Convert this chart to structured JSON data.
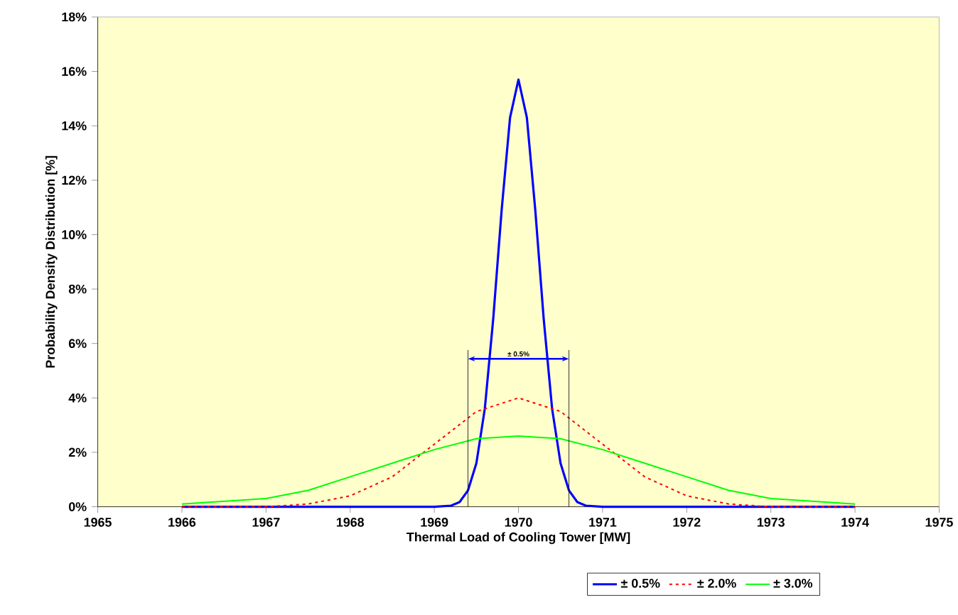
{
  "chart_data": {
    "type": "line",
    "xlabel": "Thermal Load of Cooling Tower [MW]",
    "ylabel": "Probability Density Distribution [%]",
    "xlim": [
      1965,
      1975
    ],
    "xticks": [
      1965,
      1966,
      1967,
      1968,
      1969,
      1970,
      1971,
      1972,
      1973,
      1974,
      1975
    ],
    "ylim": [
      0,
      18
    ],
    "yticks": [
      {
        "value": 0,
        "label": "0%"
      },
      {
        "value": 2,
        "label": "2%"
      },
      {
        "value": 4,
        "label": "4%"
      },
      {
        "value": 6,
        "label": "6%"
      },
      {
        "value": 8,
        "label": "8%"
      },
      {
        "value": 10,
        "label": "10%"
      },
      {
        "value": 12,
        "label": "12%"
      },
      {
        "value": 14,
        "label": "14%"
      },
      {
        "value": 16,
        "label": "16%"
      },
      {
        "value": 18,
        "label": "18%"
      }
    ],
    "grid": false,
    "legend": "bottom",
    "ref_lines": [
      {
        "axis": "x",
        "value": 1969.4,
        "color": "#000000"
      },
      {
        "axis": "x",
        "value": 1970.6,
        "color": "#000000"
      }
    ],
    "annotations": [
      "± 0.5%"
    ],
    "series": [
      {
        "name": "± 0.5%",
        "color": "#0000ff",
        "line_style": "solid",
        "x": [
          1966,
          1967,
          1968,
          1969,
          1969.2,
          1969.3,
          1969.4,
          1969.5,
          1969.6,
          1969.7,
          1969.8,
          1969.9,
          1970,
          1970.1,
          1970.2,
          1970.3,
          1970.4,
          1970.5,
          1970.6,
          1970.7,
          1970.8,
          1971,
          1972,
          1973,
          1974
        ],
        "values": [
          0,
          0,
          0,
          0,
          0.04,
          0.17,
          0.6,
          1.6,
          3.6,
          6.9,
          10.9,
          14.3,
          15.7,
          14.3,
          10.9,
          6.9,
          3.6,
          1.6,
          0.6,
          0.17,
          0.04,
          0,
          0,
          0,
          0
        ]
      },
      {
        "name": "± 2.0%",
        "color": "#ff0000",
        "line_style": "dotted",
        "x": [
          1966,
          1966.5,
          1967,
          1967.5,
          1968,
          1968.5,
          1969,
          1969.5,
          1970,
          1970.5,
          1971,
          1971.5,
          1972,
          1972.5,
          1973,
          1973.5,
          1974
        ],
        "values": [
          0,
          0,
          0,
          0.1,
          0.4,
          1.1,
          2.3,
          3.5,
          4.0,
          3.5,
          2.3,
          1.1,
          0.4,
          0.1,
          0,
          0,
          0
        ]
      },
      {
        "name": "± 3.0%",
        "color": "#00ff00",
        "line_style": "solid",
        "x": [
          1966,
          1966.5,
          1967,
          1967.5,
          1968,
          1968.5,
          1969,
          1969.5,
          1970,
          1970.5,
          1971,
          1971.5,
          1972,
          1972.5,
          1973,
          1973.5,
          1974
        ],
        "values": [
          0.1,
          0.2,
          0.3,
          0.6,
          1.1,
          1.6,
          2.1,
          2.5,
          2.6,
          2.5,
          2.1,
          1.6,
          1.1,
          0.6,
          0.3,
          0.2,
          0.1
        ]
      }
    ]
  }
}
